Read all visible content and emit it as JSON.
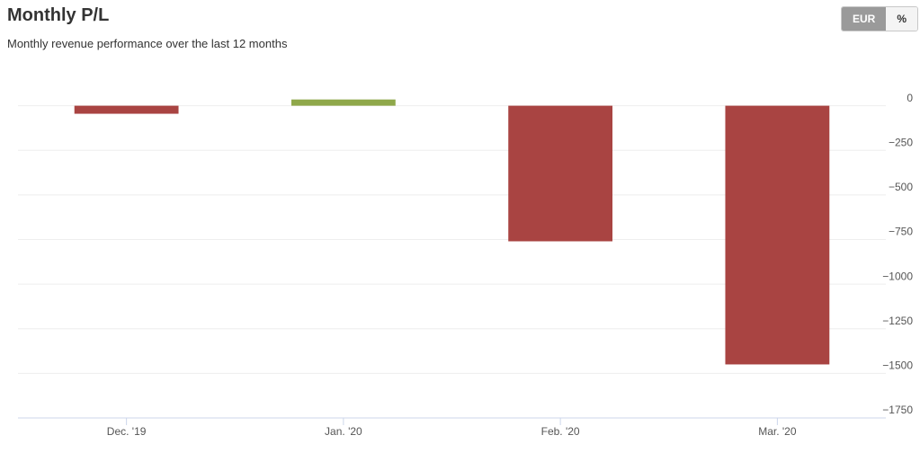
{
  "chart_data": {
    "type": "bar",
    "title": "Monthly P/L",
    "subtitle": "Monthly revenue performance over the last 12 months",
    "categories": [
      "Dec. '19",
      "Jan. '20",
      "Feb. '20",
      "Mar. '20"
    ],
    "values": [
      -45,
      35,
      -760,
      -1450
    ],
    "positive_color": "#8fa84a",
    "negative_color": "#a94442",
    "ylim": [
      -1750,
      250
    ],
    "yticks": [
      0,
      {
        "value": -250,
        "label": "−250"
      },
      {
        "value": -500,
        "label": "−500"
      },
      {
        "value": -750,
        "label": "−750"
      },
      {
        "value": -1000,
        "label": "−1000"
      },
      {
        "value": -1250,
        "label": "−1250"
      },
      {
        "value": -1500,
        "label": "−1500"
      },
      {
        "value": -1750,
        "label": "−1750"
      }
    ],
    "grid": true
  },
  "unit_toggle": [
    "EUR",
    "%"
  ]
}
